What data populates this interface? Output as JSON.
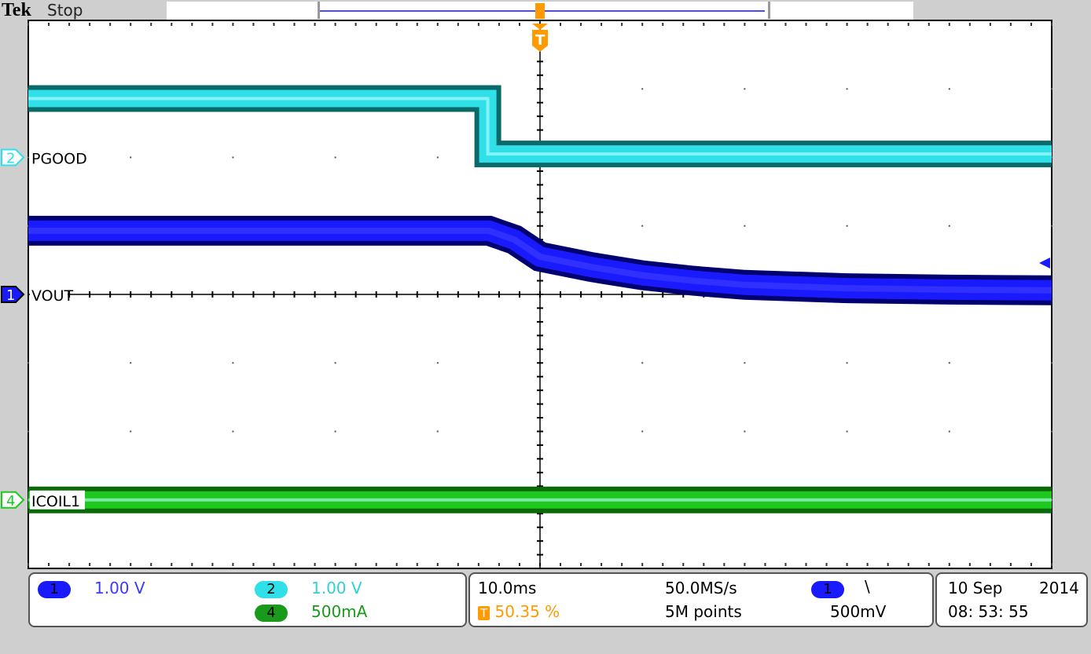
{
  "header": {
    "brand": "Tek",
    "state": "Stop"
  },
  "colors": {
    "ch1": "#1a1aff",
    "ch2": "#2fe0e8",
    "ch4": "#1fc81f",
    "trigger": "#ff9a00",
    "record_line": "#4a4aff"
  },
  "channel_labels": [
    {
      "num": "2",
      "name": "PGOOD"
    },
    {
      "num": "1",
      "name": "VOUT"
    },
    {
      "num": "4",
      "name": "ICOIL1"
    }
  ],
  "settings": {
    "ch1": {
      "num": "1",
      "scale": "1.00 V"
    },
    "ch2": {
      "num": "2",
      "scale": "1.00 V"
    },
    "ch4": {
      "num": "4",
      "scale": "500mA"
    },
    "timebase": "10.0ms",
    "trigger_pos": "50.35 %",
    "trigger_icon": "T",
    "sample_rate": "50.0MS/s",
    "record_length": "5M points",
    "trigger_source": "1",
    "trigger_slope": "\\",
    "trigger_level": "500mV",
    "date": "10 Sep",
    "year": "2014",
    "time": "08: 53: 55"
  },
  "chart_data": {
    "type": "line",
    "xlim": [
      -50,
      50
    ],
    "x_unit": "ms",
    "x_divisions": 10,
    "y_divisions": 8,
    "grid": true,
    "series": [
      {
        "name": "PGOOD",
        "channel": 2,
        "color": "#2fe0e8",
        "offset_div": 2,
        "scale_per_div": 1,
        "x": [
          -50,
          -5.1,
          -5.1,
          50
        ],
        "y": [
          0.86,
          0.86,
          0.05,
          0.05
        ]
      },
      {
        "name": "VOUT",
        "channel": 1,
        "color": "#1a1aff",
        "offset_div": 0,
        "scale_per_div": 1,
        "x": [
          -50,
          -5,
          -2.5,
          0,
          5,
          10,
          15,
          20,
          30,
          40,
          50
        ],
        "y": [
          0.93,
          0.93,
          0.8,
          0.55,
          0.4,
          0.28,
          0.2,
          0.14,
          0.09,
          0.07,
          0.06
        ]
      },
      {
        "name": "ICOIL1",
        "channel": 4,
        "color": "#1fc81f",
        "offset_div": -3,
        "scale_per_div": 0.5,
        "x": [
          -50,
          50
        ],
        "y": [
          0,
          0
        ]
      }
    ]
  }
}
